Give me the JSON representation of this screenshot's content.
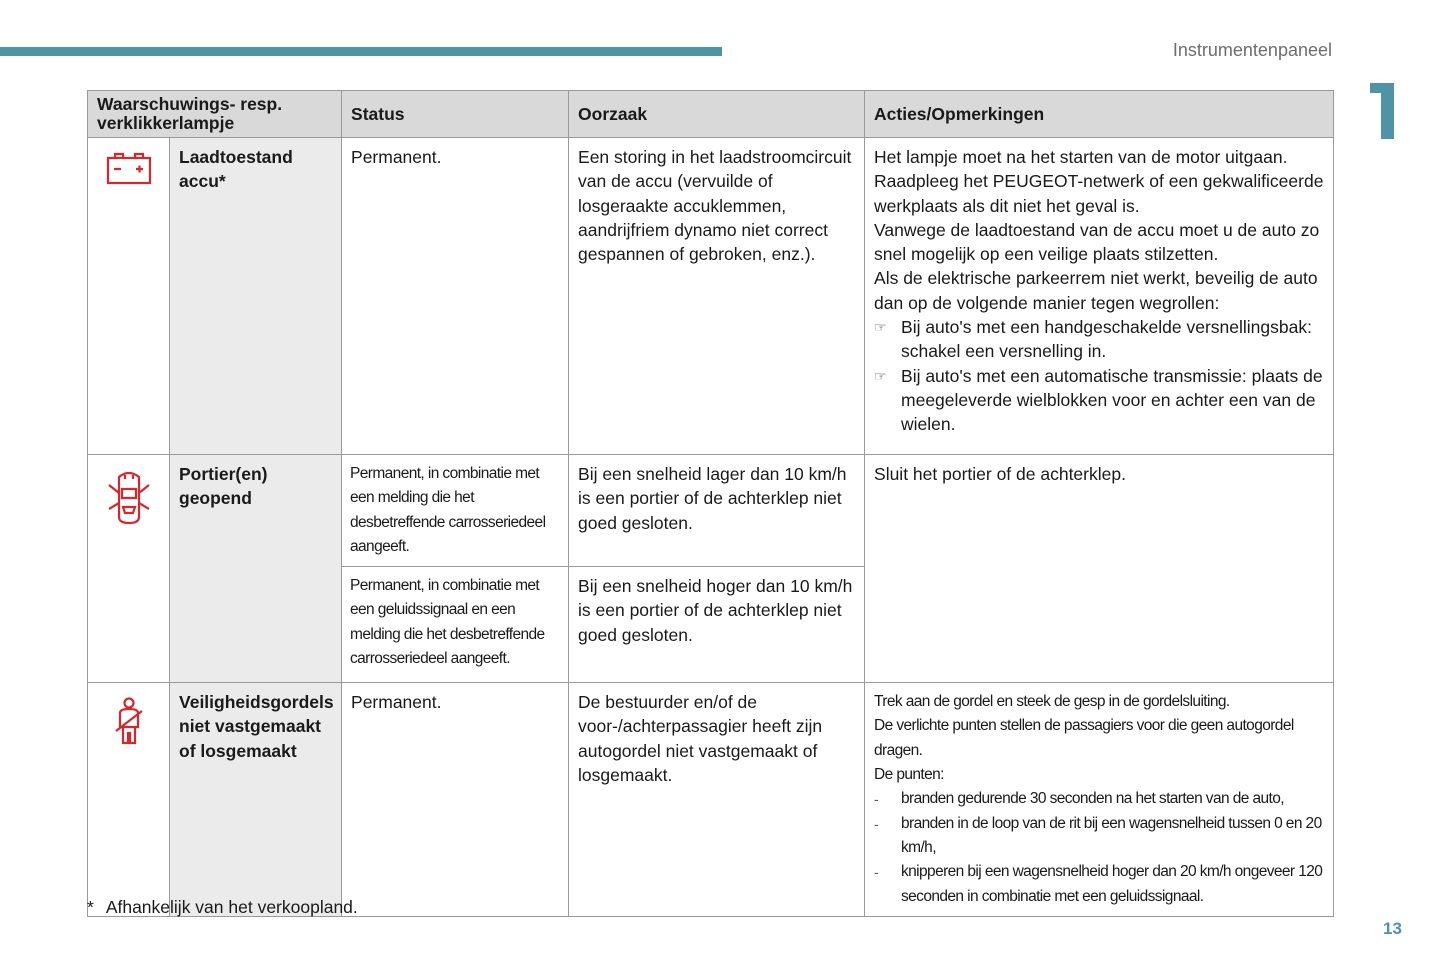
{
  "header": {
    "section": "Instrumentenpaneel",
    "chapter": "1",
    "page": "13",
    "accent": "#4f93a7"
  },
  "table": {
    "columns": [
      "Waarschuwings- resp. verklikkerlampje",
      "Status",
      "Oorzaak",
      "Acties/Opmerkingen"
    ],
    "rows": [
      {
        "icon": "battery-icon",
        "label": "Laadtoestand accu*",
        "status": "Permanent.",
        "cause": "Een storing in het laadstroomcircuit van de accu (vervuilde of losgeraakte accuklemmen, aandrijfriem dynamo niet correct gespannen of gebroken, enz.).",
        "actions": [
          "Het lampje moet na het starten van de motor uitgaan.",
          "Raadpleeg het PEUGEOT-netwerk of een gekwalificeerde werkplaats als dit niet het geval is.",
          "Vanwege de laadtoestand van de accu moet u de auto zo snel mogelijk op een veilige plaats stilzetten.",
          "Als de elektrische parkeerrem niet werkt, beveilig de auto dan op de volgende manier tegen wegrollen:"
        ],
        "bullets": [
          "Bij auto's met een handgeschakelde versnellingsbak: schakel een versnelling in.",
          "Bij auto's met een automatische transmissie: plaats de meegeleverde wielblokken voor en achter een van de wielen."
        ]
      },
      {
        "icon": "door-open-icon",
        "label": "Portier(en) geopend",
        "sub": [
          {
            "status": "Permanent, in combinatie met een melding die het desbetreffende carrosseriedeel aangeeft.",
            "cause": "Bij een snelheid lager dan 10 km/h is een portier of de achterklep niet goed gesloten."
          },
          {
            "status": "Permanent, in combinatie met een geluidssignaal en een melding die het desbetreffende carrosseriedeel aangeeft.",
            "cause": "Bij een snelheid hoger dan 10 km/h is een portier of de achterklep niet goed gesloten."
          }
        ],
        "actions": "Sluit het portier of de achterklep."
      },
      {
        "icon": "seatbelt-icon",
        "label": "Veiligheidsgordels niet vastgemaakt of losgemaakt",
        "status": "Permanent.",
        "cause": "De bestuurder en/of de voor-/achterpassagier heeft zijn autogordel niet vastgemaakt of losgemaakt.",
        "actions": [
          "Trek aan de gordel en steek de gesp in de gordelsluiting.",
          "De verlichte punten stellen de passagiers voor die geen autogordel dragen.",
          "De punten:"
        ],
        "bullets": [
          "branden gedurende 30 seconden na het starten van de auto,",
          "branden in de loop van de rit bij een wagensnelheid tussen 0 en 20 km/h,",
          "knipperen bij een wagensnelheid hoger dan 20 km/h ongeveer 120 seconden in combinatie met een geluidssignaal."
        ]
      }
    ]
  },
  "footnote": {
    "mark": "*",
    "text": "Afhankelijk van het verkoopland."
  },
  "icon_color": "#d7262e"
}
